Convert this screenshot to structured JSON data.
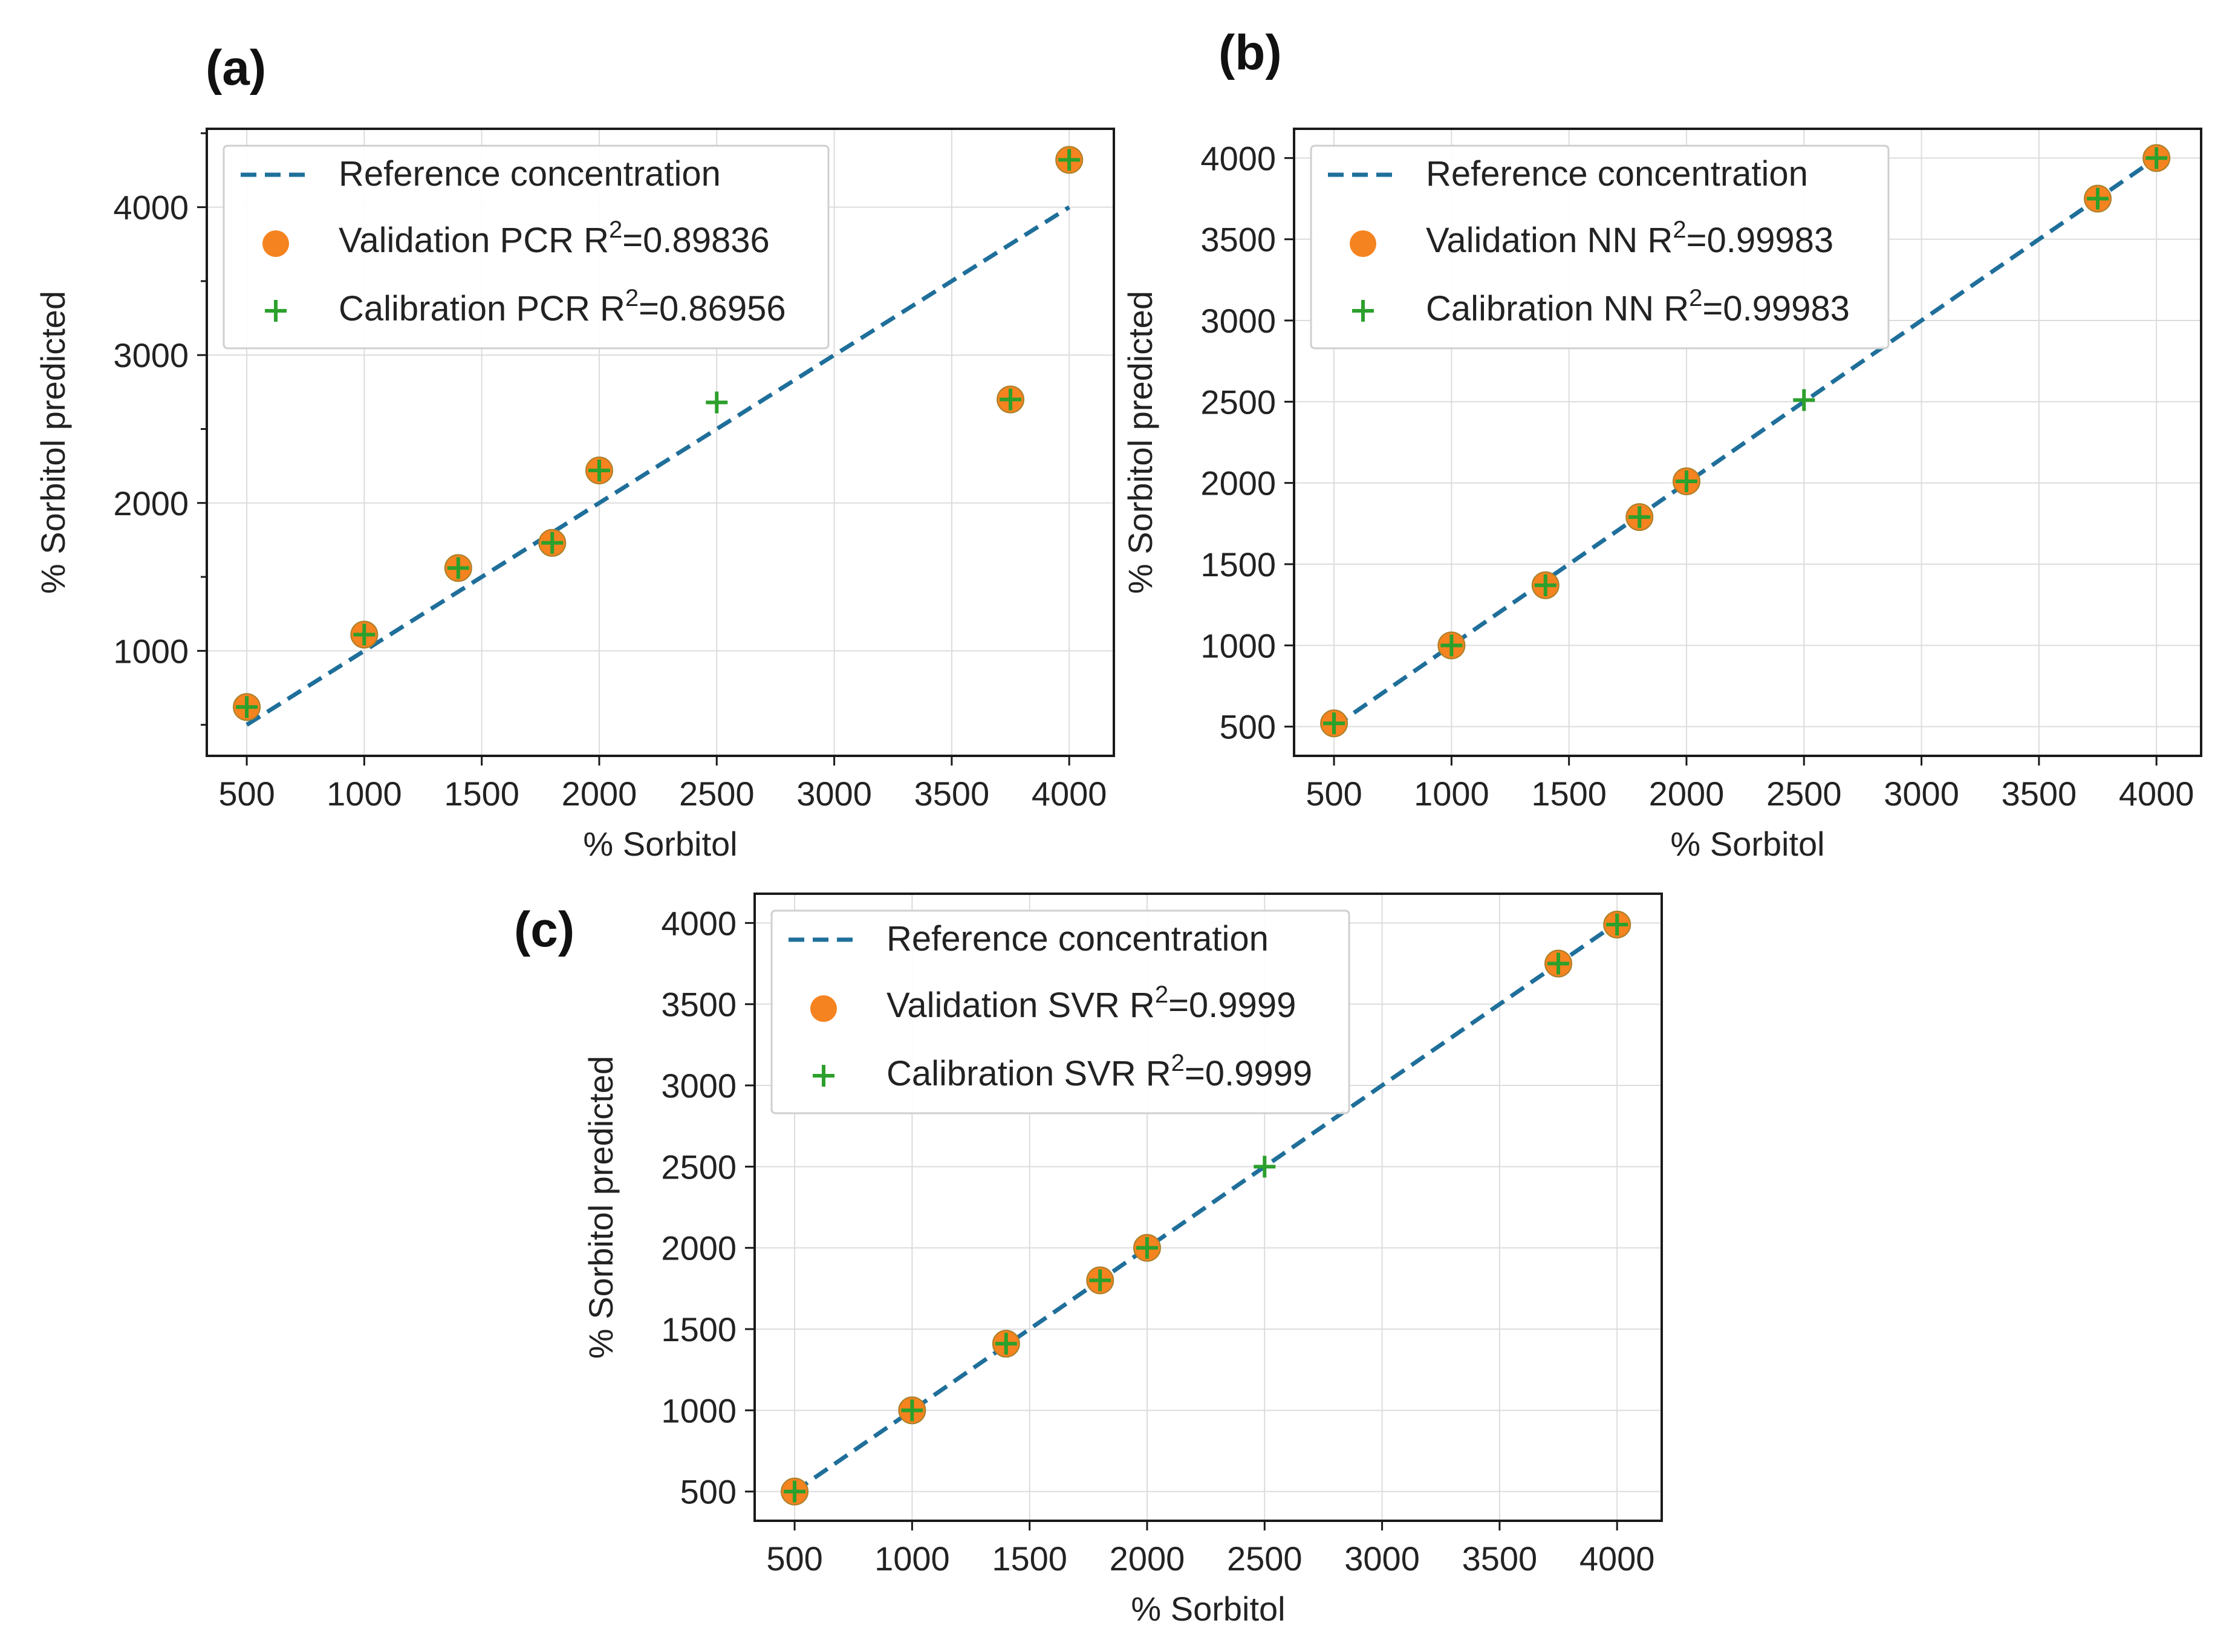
{
  "colors": {
    "reference": "#1f6f9a",
    "validation": "#f5831f",
    "calibration": "#2ca02c"
  },
  "chart_data": [
    {
      "type": "scatter",
      "panel_label": "(a)",
      "xlabel": "% Sorbitol",
      "ylabel": "% Sorbitol predicted",
      "xlim": [
        330,
        4190
      ],
      "ylim": [
        290,
        4530
      ],
      "xticks": [
        500,
        1000,
        1500,
        2000,
        2500,
        3000,
        3500,
        4000
      ],
      "yticks": [
        1000,
        2000,
        3000,
        4000
      ],
      "ytick_labels": [
        "1000",
        "2000",
        "3000",
        "4000"
      ],
      "xtick_labels": [
        "500",
        "1000",
        "1500",
        "2000",
        "2500",
        "3000",
        "3500",
        "4000"
      ],
      "reference_line": {
        "x": [
          500,
          4000
        ],
        "y": [
          500,
          4000
        ]
      },
      "legend": {
        "position": "top-left",
        "reference_label": "Reference concentration",
        "validation_label": "Validation  PCR  R",
        "validation_r2": "=0.89836",
        "calibration_label": "Calibration PCR  R",
        "calibration_r2": "=0.86956",
        "superscript": "2"
      },
      "series": [
        {
          "name": "Validation PCR",
          "marker": "circle",
          "x": [
            500,
            1000,
            1400,
            1800,
            2000,
            3750,
            4000
          ],
          "y": [
            620,
            1110,
            1560,
            1730,
            2220,
            2700,
            4320
          ]
        },
        {
          "name": "Calibration PCR",
          "marker": "plus",
          "x": [
            500,
            1000,
            1400,
            1800,
            2000,
            2500,
            3750,
            4000
          ],
          "y": [
            620,
            1110,
            1560,
            1730,
            2220,
            2680,
            2700,
            4320
          ]
        }
      ]
    },
    {
      "type": "scatter",
      "panel_label": "(b)",
      "xlabel": "% Sorbitol",
      "ylabel": "% Sorbitol predicted",
      "xlim": [
        330,
        4190
      ],
      "ylim": [
        320,
        4180
      ],
      "xticks": [
        500,
        1000,
        1500,
        2000,
        2500,
        3000,
        3500,
        4000
      ],
      "yticks": [
        500,
        1000,
        1500,
        2000,
        2500,
        3000,
        3500,
        4000
      ],
      "ytick_labels": [
        "500",
        "1000",
        "1500",
        "2000",
        "2500",
        "3000",
        "3500",
        "4000"
      ],
      "xtick_labels": [
        "500",
        "1000",
        "1500",
        "2000",
        "2500",
        "3000",
        "3500",
        "4000"
      ],
      "reference_line": {
        "x": [
          500,
          4000
        ],
        "y": [
          500,
          4000
        ]
      },
      "legend": {
        "position": "top-left",
        "reference_label": "Reference concentration",
        "validation_label": "Validation  NN  R",
        "validation_r2": "=0.99983",
        "calibration_label": "Calibration NN  R",
        "calibration_r2": "=0.99983",
        "superscript": "2"
      },
      "series": [
        {
          "name": "Validation NN",
          "marker": "circle",
          "x": [
            500,
            1000,
            1400,
            1800,
            2000,
            3750,
            4000
          ],
          "y": [
            520,
            1000,
            1370,
            1790,
            2010,
            3750,
            4000
          ]
        },
        {
          "name": "Calibration NN",
          "marker": "plus",
          "x": [
            500,
            1000,
            1400,
            1800,
            2000,
            2500,
            3750,
            4000
          ],
          "y": [
            520,
            1000,
            1370,
            1790,
            2010,
            2510,
            3750,
            4000
          ]
        }
      ]
    },
    {
      "type": "scatter",
      "panel_label": "(c)",
      "xlabel": "% Sorbitol",
      "ylabel": "% Sorbitol predicted",
      "xlim": [
        330,
        4190
      ],
      "ylim": [
        320,
        4180
      ],
      "xticks": [
        500,
        1000,
        1500,
        2000,
        2500,
        3000,
        3500,
        4000
      ],
      "yticks": [
        500,
        1000,
        1500,
        2000,
        2500,
        3000,
        3500,
        4000
      ],
      "ytick_labels": [
        "500",
        "1000",
        "1500",
        "2000",
        "2500",
        "3000",
        "3500",
        "4000"
      ],
      "xtick_labels": [
        "500",
        "1000",
        "1500",
        "2000",
        "2500",
        "3000",
        "3500",
        "4000"
      ],
      "reference_line": {
        "x": [
          500,
          4000
        ],
        "y": [
          500,
          4000
        ]
      },
      "legend": {
        "position": "top-left",
        "reference_label": "Reference concentration",
        "validation_label": "Validation  SVR  R",
        "validation_r2": "=0.9999",
        "calibration_label": "Calibration SVR  R",
        "calibration_r2": "=0.9999",
        "superscript": "2"
      },
      "series": [
        {
          "name": "Validation SVR",
          "marker": "circle",
          "x": [
            500,
            1000,
            1400,
            1800,
            2000,
            3750,
            4000
          ],
          "y": [
            500,
            1000,
            1410,
            1800,
            2000,
            3750,
            3990
          ]
        },
        {
          "name": "Calibration SVR",
          "marker": "plus",
          "x": [
            500,
            1000,
            1400,
            1800,
            2000,
            2500,
            3750,
            4000
          ],
          "y": [
            500,
            1000,
            1410,
            1800,
            2000,
            2500,
            3750,
            3990
          ]
        }
      ]
    }
  ]
}
